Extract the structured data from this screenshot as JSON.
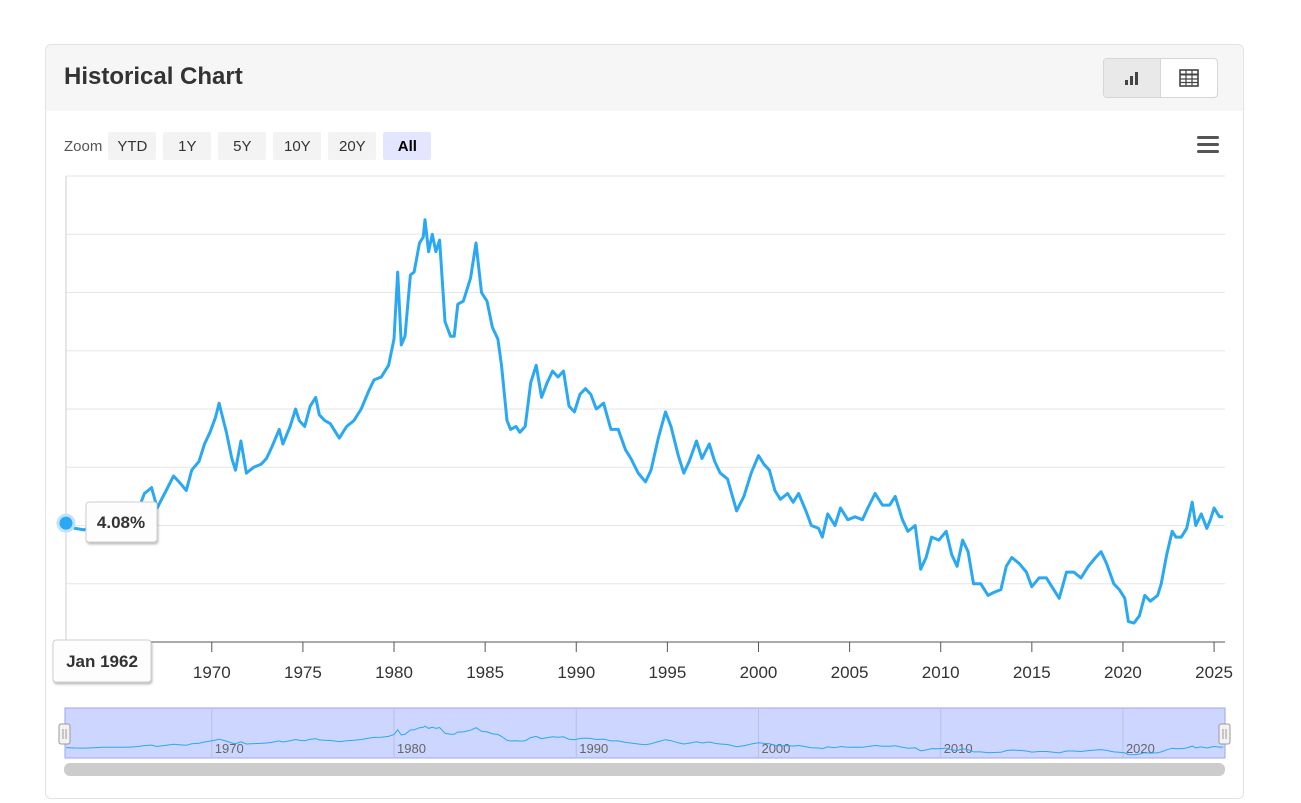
{
  "header": {
    "title": "Historical Chart"
  },
  "view_toggle": [
    {
      "name": "chart-view-button",
      "icon": "bar-chart-icon",
      "active": true
    },
    {
      "name": "table-view-button",
      "icon": "table-grid-icon",
      "active": false
    }
  ],
  "zoom": {
    "label": "Zoom",
    "buttons": [
      "YTD",
      "1Y",
      "5Y",
      "10Y",
      "20Y",
      "All"
    ],
    "active": "All"
  },
  "menu": {
    "icon": "hamburger-menu-icon"
  },
  "colors": {
    "line": "#2aa8f2",
    "navigator_fill": "#cdd6ff",
    "navigator_mask": "#c6cdfb"
  },
  "tooltip": {
    "value": "4.08%",
    "date": "Jan 1962"
  },
  "chart_data": {
    "type": "line",
    "title": "",
    "xlabel": "",
    "ylabel": "",
    "x_ticks": [
      1970,
      1975,
      1980,
      1985,
      1990,
      1995,
      2000,
      2005,
      2010,
      2015,
      2020,
      2025
    ],
    "x_range": [
      1962.0,
      2025.6
    ],
    "y_range": [
      0,
      16
    ],
    "grid": true,
    "y_labels_shown": false,
    "navigator_ticks": [
      1970,
      1980,
      1990,
      2000,
      2010,
      2020
    ],
    "series": [
      {
        "values": [
          [
            1962.0,
            4.08
          ],
          [
            1962.5,
            3.9
          ],
          [
            1963.0,
            3.85
          ],
          [
            1963.5,
            4.0
          ],
          [
            1964.0,
            4.2
          ],
          [
            1964.5,
            4.2
          ],
          [
            1965.0,
            4.2
          ],
          [
            1965.5,
            4.3
          ],
          [
            1966.0,
            4.6
          ],
          [
            1966.3,
            5.1
          ],
          [
            1966.7,
            5.3
          ],
          [
            1967.0,
            4.6
          ],
          [
            1967.5,
            5.2
          ],
          [
            1967.9,
            5.7
          ],
          [
            1968.2,
            5.5
          ],
          [
            1968.6,
            5.2
          ],
          [
            1968.9,
            5.9
          ],
          [
            1969.3,
            6.2
          ],
          [
            1969.6,
            6.8
          ],
          [
            1969.9,
            7.2
          ],
          [
            1970.2,
            7.7
          ],
          [
            1970.4,
            8.2
          ],
          [
            1970.6,
            7.7
          ],
          [
            1970.8,
            7.2
          ],
          [
            1971.1,
            6.3
          ],
          [
            1971.3,
            5.9
          ],
          [
            1971.6,
            6.9
          ],
          [
            1971.9,
            5.8
          ],
          [
            1972.3,
            6.0
          ],
          [
            1972.7,
            6.1
          ],
          [
            1973.0,
            6.3
          ],
          [
            1973.3,
            6.7
          ],
          [
            1973.7,
            7.3
          ],
          [
            1973.9,
            6.8
          ],
          [
            1974.3,
            7.4
          ],
          [
            1974.6,
            8.0
          ],
          [
            1974.8,
            7.6
          ],
          [
            1975.1,
            7.4
          ],
          [
            1975.4,
            8.1
          ],
          [
            1975.7,
            8.4
          ],
          [
            1975.9,
            7.8
          ],
          [
            1976.2,
            7.6
          ],
          [
            1976.5,
            7.5
          ],
          [
            1976.8,
            7.2
          ],
          [
            1977.0,
            7.0
          ],
          [
            1977.4,
            7.4
          ],
          [
            1977.8,
            7.6
          ],
          [
            1978.2,
            8.0
          ],
          [
            1978.6,
            8.6
          ],
          [
            1978.9,
            9.0
          ],
          [
            1979.3,
            9.1
          ],
          [
            1979.7,
            9.5
          ],
          [
            1980.0,
            10.4
          ],
          [
            1980.2,
            12.7
          ],
          [
            1980.4,
            10.2
          ],
          [
            1980.6,
            10.5
          ],
          [
            1980.9,
            12.6
          ],
          [
            1981.1,
            12.7
          ],
          [
            1981.4,
            13.7
          ],
          [
            1981.6,
            13.9
          ],
          [
            1981.7,
            14.5
          ],
          [
            1981.9,
            13.4
          ],
          [
            1982.1,
            14.0
          ],
          [
            1982.3,
            13.4
          ],
          [
            1982.5,
            13.8
          ],
          [
            1982.8,
            11.0
          ],
          [
            1983.1,
            10.5
          ],
          [
            1983.3,
            10.5
          ],
          [
            1983.5,
            11.6
          ],
          [
            1983.8,
            11.7
          ],
          [
            1984.2,
            12.5
          ],
          [
            1984.5,
            13.7
          ],
          [
            1984.8,
            12.0
          ],
          [
            1985.1,
            11.7
          ],
          [
            1985.4,
            10.8
          ],
          [
            1985.7,
            10.4
          ],
          [
            1985.9,
            9.5
          ],
          [
            1986.2,
            7.6
          ],
          [
            1986.4,
            7.3
          ],
          [
            1986.7,
            7.4
          ],
          [
            1986.9,
            7.2
          ],
          [
            1987.2,
            7.4
          ],
          [
            1987.5,
            8.9
          ],
          [
            1987.8,
            9.5
          ],
          [
            1988.1,
            8.4
          ],
          [
            1988.4,
            8.9
          ],
          [
            1988.7,
            9.3
          ],
          [
            1989.0,
            9.1
          ],
          [
            1989.3,
            9.3
          ],
          [
            1989.6,
            8.1
          ],
          [
            1989.9,
            7.9
          ],
          [
            1990.2,
            8.5
          ],
          [
            1990.5,
            8.7
          ],
          [
            1990.8,
            8.5
          ],
          [
            1991.1,
            8.0
          ],
          [
            1991.5,
            8.2
          ],
          [
            1991.9,
            7.3
          ],
          [
            1992.3,
            7.3
          ],
          [
            1992.7,
            6.6
          ],
          [
            1993.0,
            6.3
          ],
          [
            1993.4,
            5.8
          ],
          [
            1993.8,
            5.5
          ],
          [
            1994.1,
            5.9
          ],
          [
            1994.5,
            7.0
          ],
          [
            1994.9,
            7.9
          ],
          [
            1995.2,
            7.4
          ],
          [
            1995.6,
            6.4
          ],
          [
            1995.9,
            5.8
          ],
          [
            1996.2,
            6.2
          ],
          [
            1996.6,
            6.9
          ],
          [
            1996.9,
            6.3
          ],
          [
            1997.3,
            6.8
          ],
          [
            1997.6,
            6.2
          ],
          [
            1997.9,
            5.8
          ],
          [
            1998.3,
            5.6
          ],
          [
            1998.8,
            4.5
          ],
          [
            1999.2,
            5.0
          ],
          [
            1999.6,
            5.8
          ],
          [
            2000.0,
            6.4
          ],
          [
            2000.3,
            6.1
          ],
          [
            2000.6,
            5.9
          ],
          [
            2000.9,
            5.2
          ],
          [
            2001.2,
            4.9
          ],
          [
            2001.6,
            5.1
          ],
          [
            2001.9,
            4.8
          ],
          [
            2002.2,
            5.1
          ],
          [
            2002.6,
            4.5
          ],
          [
            2002.9,
            4.0
          ],
          [
            2003.3,
            3.9
          ],
          [
            2003.5,
            3.6
          ],
          [
            2003.8,
            4.4
          ],
          [
            2004.2,
            4.0
          ],
          [
            2004.5,
            4.6
          ],
          [
            2004.9,
            4.2
          ],
          [
            2005.3,
            4.3
          ],
          [
            2005.7,
            4.2
          ],
          [
            2006.0,
            4.6
          ],
          [
            2006.4,
            5.1
          ],
          [
            2006.8,
            4.7
          ],
          [
            2007.2,
            4.7
          ],
          [
            2007.5,
            5.0
          ],
          [
            2007.9,
            4.2
          ],
          [
            2008.2,
            3.8
          ],
          [
            2008.6,
            4.0
          ],
          [
            2008.9,
            2.5
          ],
          [
            2009.2,
            2.9
          ],
          [
            2009.5,
            3.6
          ],
          [
            2009.9,
            3.5
          ],
          [
            2010.3,
            3.8
          ],
          [
            2010.6,
            3.0
          ],
          [
            2010.9,
            2.6
          ],
          [
            2011.2,
            3.5
          ],
          [
            2011.5,
            3.1
          ],
          [
            2011.8,
            2.0
          ],
          [
            2012.2,
            2.0
          ],
          [
            2012.6,
            1.6
          ],
          [
            2012.9,
            1.7
          ],
          [
            2013.3,
            1.8
          ],
          [
            2013.6,
            2.6
          ],
          [
            2013.9,
            2.9
          ],
          [
            2014.3,
            2.7
          ],
          [
            2014.7,
            2.4
          ],
          [
            2015.0,
            1.9
          ],
          [
            2015.4,
            2.2
          ],
          [
            2015.8,
            2.2
          ],
          [
            2016.2,
            1.8
          ],
          [
            2016.5,
            1.5
          ],
          [
            2016.9,
            2.4
          ],
          [
            2017.3,
            2.4
          ],
          [
            2017.7,
            2.2
          ],
          [
            2018.1,
            2.6
          ],
          [
            2018.5,
            2.9
          ],
          [
            2018.8,
            3.1
          ],
          [
            2019.1,
            2.7
          ],
          [
            2019.5,
            2.0
          ],
          [
            2019.8,
            1.8
          ],
          [
            2020.1,
            1.5
          ],
          [
            2020.3,
            0.7
          ],
          [
            2020.6,
            0.65
          ],
          [
            2020.9,
            0.9
          ],
          [
            2021.2,
            1.6
          ],
          [
            2021.5,
            1.4
          ],
          [
            2021.9,
            1.6
          ],
          [
            2022.1,
            2.0
          ],
          [
            2022.4,
            3.0
          ],
          [
            2022.7,
            3.8
          ],
          [
            2022.9,
            3.6
          ],
          [
            2023.2,
            3.6
          ],
          [
            2023.5,
            3.9
          ],
          [
            2023.8,
            4.8
          ],
          [
            2024.0,
            4.0
          ],
          [
            2024.3,
            4.4
          ],
          [
            2024.6,
            3.9
          ],
          [
            2024.8,
            4.2
          ],
          [
            2025.0,
            4.6
          ],
          [
            2025.3,
            4.3
          ],
          [
            2025.5,
            4.3
          ]
        ]
      }
    ]
  }
}
